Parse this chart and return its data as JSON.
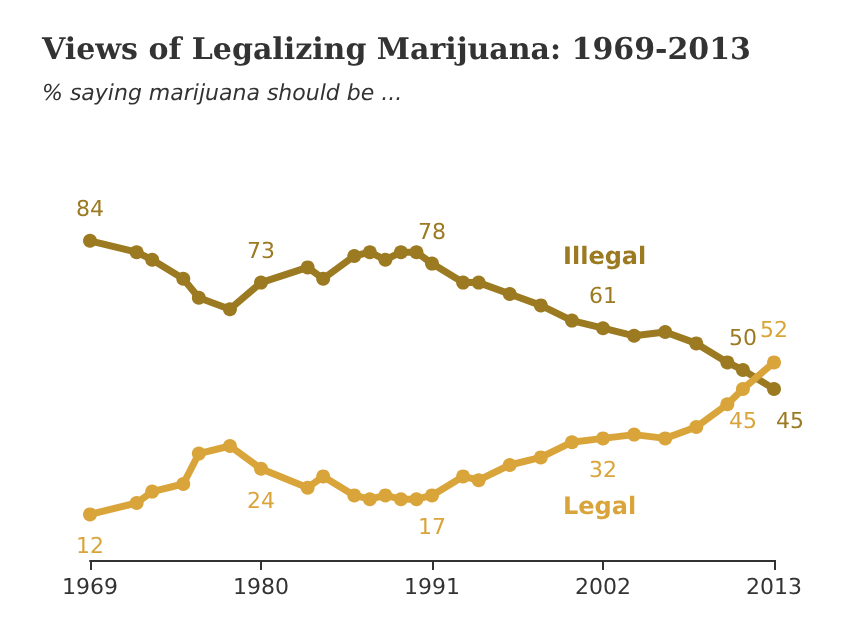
{
  "chart_data": {
    "type": "line",
    "title": "Views of Legalizing Marijuana: 1969-2013",
    "subtitle": "% saying marijuana should be ...",
    "x": [
      1969,
      1972,
      1973,
      1975,
      1976,
      1978,
      1980,
      1983,
      1984,
      1986,
      1987,
      1988,
      1989,
      1990,
      1991,
      1993,
      1994,
      1996,
      1998,
      2000,
      2002,
      2004,
      2006,
      2008,
      2010,
      2011,
      2013
    ],
    "xlim": [
      1969,
      2013
    ],
    "xticks": [
      1969,
      1980,
      1991,
      2002,
      2013
    ],
    "tick_labels": "x",
    "grid": false,
    "legend": false,
    "marker": "circle",
    "line_style": "solid",
    "series": [
      {
        "name": "Illegal",
        "color": "#9b7a22",
        "values": [
          84,
          81,
          79,
          74,
          69,
          66,
          73,
          77,
          74,
          80,
          81,
          79,
          81,
          81,
          78,
          73,
          73,
          70,
          67,
          63,
          61,
          59,
          60,
          57,
          52,
          50,
          45
        ],
        "value_labels": [
          "84",
          null,
          null,
          null,
          null,
          null,
          "73",
          null,
          null,
          null,
          null,
          null,
          null,
          null,
          "78",
          null,
          null,
          null,
          null,
          null,
          "61",
          null,
          null,
          null,
          null,
          "50",
          "45"
        ]
      },
      {
        "name": "Legal",
        "color": "#d9a53a",
        "values": [
          12,
          15,
          18,
          20,
          28,
          30,
          24,
          19,
          22,
          17,
          16,
          17,
          16,
          16,
          17,
          22,
          21,
          25,
          27,
          31,
          32,
          33,
          32,
          35,
          41,
          45,
          52
        ],
        "value_labels": [
          "12",
          null,
          null,
          null,
          null,
          null,
          "24",
          null,
          null,
          null,
          null,
          null,
          null,
          null,
          "17",
          null,
          null,
          null,
          null,
          null,
          "32",
          null,
          null,
          null,
          null,
          "45",
          "52"
        ]
      }
    ]
  }
}
